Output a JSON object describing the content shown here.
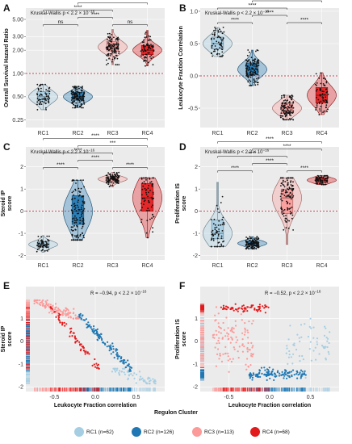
{
  "colors": {
    "RC1": "#a6cee3",
    "RC2": "#1f78b4",
    "RC3": "#fb9a99",
    "RC4": "#e31a1c"
  },
  "legend": {
    "title": "Regulon Cluster",
    "items": [
      {
        "key": "RC1",
        "label": "RC1 (n=62)"
      },
      {
        "key": "RC2",
        "label": "RC2 (n=126)"
      },
      {
        "key": "RC3",
        "label": "RC3 (n=113)"
      },
      {
        "key": "RC4",
        "label": "RC4 (n=68)"
      }
    ]
  },
  "chart_data": [
    {
      "panel": "A",
      "type": "violin-box",
      "ylabel": "Overall Survival Hazard Ratio",
      "categories": [
        "RC1",
        "RC2",
        "RC3",
        "RC4"
      ],
      "yscale": "log",
      "ylim": [
        0.2,
        7
      ],
      "yticks": [
        0.25,
        0.5,
        1.0,
        2.0,
        3.0,
        5.0
      ],
      "ytick_labels": [
        "0.25",
        "0.50",
        "1.00",
        "2.00",
        "3.00",
        "5.00"
      ],
      "ref_line": 1.0,
      "stat_text": "Kruskal-Wallis p < 2.2 × 10",
      "stat_exp": "−16",
      "summary": [
        {
          "median": 0.5,
          "q1": 0.43,
          "q3": 0.58,
          "min": 0.34,
          "max": 0.72
        },
        {
          "median": 0.5,
          "q1": 0.45,
          "q3": 0.57,
          "min": 0.36,
          "max": 0.68
        },
        {
          "median": 2.2,
          "q1": 1.95,
          "q3": 2.6,
          "min": 1.3,
          "max": 3.7
        },
        {
          "median": 2.0,
          "q1": 1.75,
          "q3": 2.3,
          "min": 1.25,
          "max": 3.6
        }
      ],
      "comparisons": [
        {
          "from": 1,
          "to": 2,
          "label": "ns"
        },
        {
          "from": 3,
          "to": 4,
          "label": "ns"
        },
        {
          "from": 2,
          "to": 3,
          "label": "****"
        },
        {
          "from": 1,
          "to": 3,
          "label": "****"
        },
        {
          "from": 2,
          "to": 4,
          "label": "****"
        },
        {
          "from": 1,
          "to": 4,
          "label": "****"
        }
      ]
    },
    {
      "panel": "B",
      "type": "violin-box",
      "ylabel": "Leukocyte Fraction Correlation",
      "categories": [
        "RC1",
        "RC2",
        "RC3",
        "RC4"
      ],
      "ylim": [
        -0.8,
        1.05
      ],
      "yticks": [
        -0.5,
        0.0,
        0.5,
        1.0
      ],
      "ytick_labels": [
        "-0.5",
        "0.0",
        "0.5",
        "1.0"
      ],
      "ref_line": 0.0,
      "stat_text": "Kruskal-Wallis p < 2.2 × 10",
      "stat_exp": "−16",
      "summary": [
        {
          "median": 0.5,
          "q1": 0.42,
          "q3": 0.6,
          "min": 0.3,
          "max": 0.75
        },
        {
          "median": 0.1,
          "q1": 0.02,
          "q3": 0.2,
          "min": -0.15,
          "max": 0.4
        },
        {
          "median": -0.5,
          "q1": -0.58,
          "q3": -0.42,
          "min": -0.68,
          "max": -0.3
        },
        {
          "median": -0.3,
          "q1": -0.42,
          "q3": -0.18,
          "min": -0.6,
          "max": 0.05
        }
      ],
      "comparisons": [
        {
          "from": 1,
          "to": 2,
          "label": "****"
        },
        {
          "from": 3,
          "to": 4,
          "label": "****"
        },
        {
          "from": 2,
          "to": 3,
          "label": "****"
        },
        {
          "from": 1,
          "to": 3,
          "label": "****"
        },
        {
          "from": 2,
          "to": 4,
          "label": "****"
        },
        {
          "from": 1,
          "to": 4,
          "label": "****"
        }
      ]
    },
    {
      "panel": "C",
      "type": "violin-box",
      "ylabel": "Steroid IP\nscore",
      "categories": [
        "RC1",
        "RC2",
        "RC3",
        "RC4"
      ],
      "ylim": [
        -2.2,
        2.9
      ],
      "yticks": [
        -2,
        -1,
        0,
        1,
        2
      ],
      "ytick_labels": [
        "-2",
        "-1",
        "0",
        "1",
        "2"
      ],
      "ref_line": 0,
      "stat_text": "Kruskal-Wallis p < 2.2 × 10",
      "stat_exp": "−16",
      "summary": [
        {
          "median": -1.5,
          "q1": -1.62,
          "q3": -1.38,
          "min": -1.85,
          "max": -1.1
        },
        {
          "median": 0.0,
          "q1": -0.6,
          "q3": 0.7,
          "min": -1.3,
          "max": 1.4
        },
        {
          "median": 1.45,
          "q1": 1.35,
          "q3": 1.55,
          "min": 1.1,
          "max": 1.75
        },
        {
          "median": 0.6,
          "q1": 0.0,
          "q3": 1.25,
          "min": -1.2,
          "max": 1.5
        }
      ],
      "comparisons": [
        {
          "from": 1,
          "to": 2,
          "label": "****"
        },
        {
          "from": 3,
          "to": 4,
          "label": "****"
        },
        {
          "from": 2,
          "to": 3,
          "label": "****"
        },
        {
          "from": 1,
          "to": 3,
          "label": "****"
        },
        {
          "from": 2,
          "to": 4,
          "label": "***"
        },
        {
          "from": 1,
          "to": 4,
          "label": "****"
        }
      ]
    },
    {
      "panel": "D",
      "type": "violin-box",
      "ylabel": "Proliferation IS\nscore",
      "categories": [
        "RC1",
        "RC2",
        "RC3",
        "RC4"
      ],
      "ylim": [
        -2.2,
        2.9
      ],
      "yticks": [
        -2,
        -1,
        0,
        1,
        2
      ],
      "ytick_labels": [
        "-2",
        "-1",
        "0",
        "1",
        "2"
      ],
      "ref_line": 0,
      "stat_text": "Kruskal-Wallis p < 2.2 × 10",
      "stat_exp": "−16",
      "summary": [
        {
          "median": -1.0,
          "q1": -1.25,
          "q3": -0.4,
          "min": -1.6,
          "max": 1.3
        },
        {
          "median": -1.45,
          "q1": -1.55,
          "q3": -1.35,
          "min": -1.7,
          "max": -1.15
        },
        {
          "median": 0.6,
          "q1": -0.1,
          "q3": 1.0,
          "min": -1.5,
          "max": 1.5
        },
        {
          "median": 1.4,
          "q1": 1.3,
          "q3": 1.5,
          "min": 1.2,
          "max": 1.6
        }
      ],
      "comparisons": [
        {
          "from": 1,
          "to": 2,
          "label": "****"
        },
        {
          "from": 3,
          "to": 4,
          "label": "****"
        },
        {
          "from": 2,
          "to": 3,
          "label": "****"
        },
        {
          "from": 1,
          "to": 3,
          "label": "****"
        },
        {
          "from": 2,
          "to": 4,
          "label": "****"
        },
        {
          "from": 1,
          "to": 4,
          "label": "****"
        }
      ]
    },
    {
      "panel": "E",
      "type": "scatter",
      "xlabel": "Leukocyte Fraction correlation",
      "ylabel": "Steroid IP\nscore",
      "xlim": [
        -0.85,
        0.85
      ],
      "ylim": [
        -2.2,
        2.4
      ],
      "xticks": [
        -0.5,
        0.0,
        0.5
      ],
      "xtick_labels": [
        "-0.5",
        "0.0",
        "0.5"
      ],
      "yticks": [
        -2,
        -1,
        0,
        1
      ],
      "ytick_labels": [
        "-2",
        "-1",
        "0",
        "1"
      ],
      "stat_text": "R = −0.94, p < 2.2 × 10",
      "stat_exp": "−16",
      "clusters": [
        {
          "key": "RC1",
          "x": [
            0.2,
            0.75
          ],
          "y": [
            -1.85,
            -1.2
          ]
        },
        {
          "key": "RC2",
          "x": [
            -0.2,
            0.45
          ],
          "y": [
            -1.3,
            1.2
          ]
        },
        {
          "key": "RC3",
          "x": [
            -0.75,
            -0.2
          ],
          "y": [
            1.0,
            1.8
          ]
        },
        {
          "key": "RC4",
          "x": [
            -0.55,
            0.05
          ],
          "y": [
            -1.2,
            1.5
          ]
        }
      ]
    },
    {
      "panel": "F",
      "type": "scatter",
      "xlabel": "Leukocyte Fraction correlation",
      "ylabel": "Proliferation IS\nscore",
      "xlim": [
        -0.85,
        0.85
      ],
      "ylim": [
        -2.2,
        2.4
      ],
      "xticks": [
        -0.5,
        0.0,
        0.5
      ],
      "xtick_labels": [
        "-0.5",
        "0.0",
        "0.5"
      ],
      "yticks": [
        -2,
        -1,
        0,
        1
      ],
      "ytick_labels": [
        "-2",
        "-1",
        "0",
        "1"
      ],
      "stat_text": "R = −0.52, p < 2.2 × 10",
      "stat_exp": "−16",
      "clusters": [
        {
          "key": "RC1",
          "x": [
            0.2,
            0.75
          ],
          "y": [
            -1.6,
            1.2
          ]
        },
        {
          "key": "RC2",
          "x": [
            -0.25,
            0.45
          ],
          "y": [
            -1.7,
            -1.15
          ]
        },
        {
          "key": "RC3",
          "x": [
            -0.7,
            -0.2
          ],
          "y": [
            -1.5,
            1.5
          ]
        },
        {
          "key": "RC4",
          "x": [
            -0.6,
            0.0
          ],
          "y": [
            1.25,
            1.65
          ]
        }
      ]
    }
  ]
}
